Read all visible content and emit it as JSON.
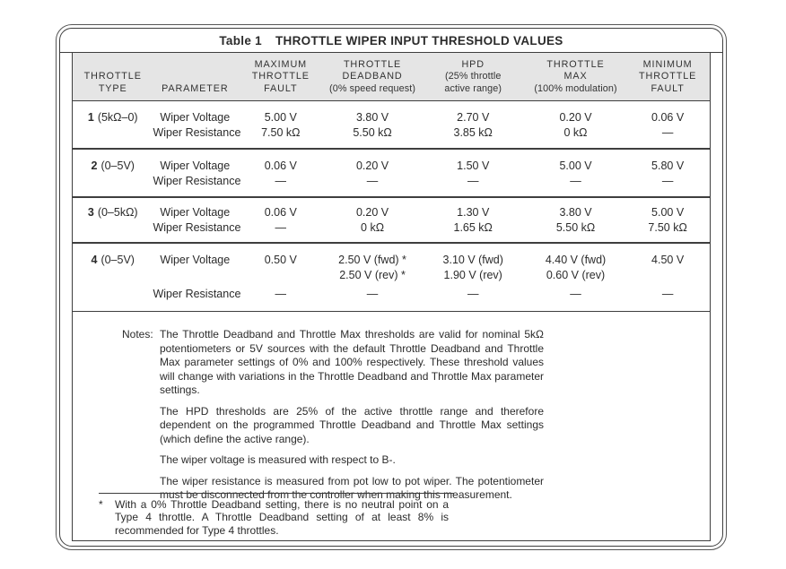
{
  "title": {
    "prefix": "Table 1",
    "text": "THROTTLE WIPER INPUT THRESHOLD VALUES"
  },
  "colors": {
    "header_bg": "#e5e5e5",
    "border": "#3e3e3e",
    "text": "#2b2b2b"
  },
  "columns": [
    {
      "lines": [
        "THROTTLE",
        "TYPE"
      ],
      "sub": []
    },
    {
      "lines": [
        "PARAMETER"
      ],
      "sub": []
    },
    {
      "lines": [
        "MAXIMUM",
        "THROTTLE",
        "FAULT"
      ],
      "sub": []
    },
    {
      "lines": [
        "THROTTLE",
        "DEADBAND"
      ],
      "sub": [
        "(0% speed request)"
      ]
    },
    {
      "lines": [
        "HPD"
      ],
      "sub": [
        "(25% throttle",
        "active range)"
      ]
    },
    {
      "lines": [
        "THROTTLE",
        "MAX"
      ],
      "sub": [
        "(100% modulation)"
      ]
    },
    {
      "lines": [
        "MINIMUM",
        "THROTTLE",
        "FAULT"
      ],
      "sub": []
    }
  ],
  "rows": [
    {
      "type_num": "1",
      "type_range": "(5kΩ–0)",
      "params": [
        "Wiper Voltage",
        "Wiper Resistance"
      ],
      "voltage": [
        "5.00 V",
        "3.80 V",
        "2.70 V",
        "0.20 V",
        "0.06 V"
      ],
      "resistance": [
        "7.50 kΩ",
        "5.50 kΩ",
        "3.85 kΩ",
        "0 kΩ",
        "—"
      ]
    },
    {
      "type_num": "2",
      "type_range": "(0–5V)",
      "params": [
        "Wiper Voltage",
        "Wiper Resistance"
      ],
      "voltage": [
        "0.06 V",
        "0.20 V",
        "1.50 V",
        "5.00 V",
        "5.80 V"
      ],
      "resistance": [
        "—",
        "—",
        "—",
        "—",
        "—"
      ]
    },
    {
      "type_num": "3",
      "type_range": "(0–5kΩ)",
      "params": [
        "Wiper Voltage",
        "Wiper Resistance"
      ],
      "voltage": [
        "0.06 V",
        "0.20 V",
        "1.30 V",
        "3.80 V",
        "5.00 V"
      ],
      "resistance": [
        "—",
        "0 kΩ",
        "1.65 kΩ",
        "5.50 kΩ",
        "7.50 kΩ"
      ]
    },
    {
      "type_num": "4",
      "type_range": "(0–5V)",
      "params": [
        "Wiper Voltage",
        "Wiper Resistance"
      ],
      "voltage": [
        "0.50 V",
        "2.50 V (fwd) *",
        "3.10 V (fwd)",
        "4.40 V (fwd)",
        "4.50 V"
      ],
      "voltage2": [
        "",
        "2.50 V (rev) *",
        "1.90 V (rev)",
        "0.60 V (rev)",
        ""
      ],
      "resistance": [
        "—",
        "—",
        "—",
        "—",
        "—"
      ]
    }
  ],
  "notes": {
    "label": "Notes:",
    "paragraphs": [
      "The Throttle Deadband and Throttle Max thresholds are valid for nominal 5kΩ potentiometers or 5V sources with the default Throttle Deadband and Throttle Max parameter settings of 0% and 100% respectively. These threshold values will change with variations in the Throttle Deadband and Throttle Max parameter settings.",
      "The HPD thresholds are 25% of the active throttle range and therefore dependent on the programmed Throttle Deadband and Throttle Max settings (which define the active range).",
      "The wiper voltage is measured with respect to B-.",
      "The wiper resistance is measured from pot low to pot wiper. The potentiometer must be disconnected from the controller when making this measurement."
    ]
  },
  "footnote": {
    "marker": "*",
    "text": "With a 0% Throttle Deadband setting, there is no neutral point on a Type 4 throttle. A Throttle Deadband setting of at least 8% is recommended for Type 4 throttles."
  }
}
